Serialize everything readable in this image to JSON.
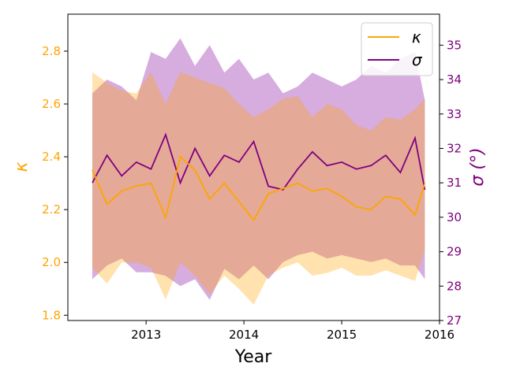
{
  "chart_data": {
    "type": "line",
    "title": "",
    "xlabel": "Year",
    "xlim": [
      2012.2,
      2016.0
    ],
    "xticks": [
      2013,
      2014,
      2015,
      2016
    ],
    "xtick_labels": [
      "2013",
      "2014",
      "2015",
      "2016"
    ],
    "grid": false,
    "legend": {
      "position": "top-right",
      "entries": [
        "κ",
        "σ"
      ]
    },
    "y_left": {
      "label": "κ",
      "color": "#FFA500",
      "ylim": [
        1.78,
        2.94
      ],
      "ticks": [
        1.8,
        2.0,
        2.2,
        2.4,
        2.6,
        2.8
      ],
      "tick_labels": [
        "1.8",
        "2.0",
        "2.2",
        "2.4",
        "2.6",
        "2.8"
      ]
    },
    "y_right": {
      "label": "σ (°)",
      "color": "#800080",
      "ylim": [
        27.0,
        35.9
      ],
      "ticks": [
        27,
        28,
        29,
        30,
        31,
        32,
        33,
        34,
        35
      ],
      "tick_labels": [
        "27",
        "28",
        "29",
        "30",
        "31",
        "32",
        "33",
        "34",
        "35"
      ]
    },
    "series": [
      {
        "name": "κ",
        "axis": "left",
        "color": "#FFA500",
        "band_color": "#FFA500",
        "x": [
          2012.45,
          2012.6,
          2012.75,
          2012.9,
          2013.05,
          2013.2,
          2013.35,
          2013.5,
          2013.65,
          2013.8,
          2013.95,
          2014.1,
          2014.25,
          2014.4,
          2014.55,
          2014.7,
          2014.85,
          2015.0,
          2015.15,
          2015.3,
          2015.45,
          2015.6,
          2015.75,
          2015.85
        ],
        "y": [
          2.35,
          2.22,
          2.27,
          2.29,
          2.3,
          2.17,
          2.4,
          2.35,
          2.24,
          2.3,
          2.23,
          2.16,
          2.26,
          2.28,
          2.3,
          2.27,
          2.28,
          2.25,
          2.21,
          2.2,
          2.25,
          2.24,
          2.18,
          2.3
        ],
        "lower": [
          1.98,
          1.92,
          2.0,
          2.0,
          1.98,
          1.86,
          2.0,
          1.95,
          1.88,
          1.95,
          1.9,
          1.84,
          1.95,
          1.98,
          2.0,
          1.95,
          1.96,
          1.98,
          1.95,
          1.95,
          1.97,
          1.95,
          1.93,
          2.05
        ],
        "upper": [
          2.72,
          2.68,
          2.65,
          2.64,
          2.72,
          2.6,
          2.72,
          2.7,
          2.68,
          2.66,
          2.6,
          2.55,
          2.58,
          2.62,
          2.63,
          2.55,
          2.6,
          2.58,
          2.52,
          2.5,
          2.55,
          2.54,
          2.58,
          2.62
        ]
      },
      {
        "name": "σ",
        "axis": "right",
        "color": "#800080",
        "band_color": "#9B30B0",
        "x": [
          2012.45,
          2012.6,
          2012.75,
          2012.9,
          2013.05,
          2013.2,
          2013.35,
          2013.5,
          2013.65,
          2013.8,
          2013.95,
          2014.1,
          2014.25,
          2014.4,
          2014.55,
          2014.7,
          2014.85,
          2015.0,
          2015.15,
          2015.3,
          2015.45,
          2015.6,
          2015.75,
          2015.85
        ],
        "y": [
          31.0,
          31.8,
          31.2,
          31.6,
          31.4,
          32.4,
          31.0,
          32.0,
          31.2,
          31.8,
          31.6,
          32.2,
          30.9,
          30.8,
          31.4,
          31.9,
          31.5,
          31.6,
          31.4,
          31.5,
          31.8,
          31.3,
          32.3,
          30.8
        ],
        "lower": [
          28.2,
          28.6,
          28.8,
          28.4,
          28.4,
          28.3,
          28.0,
          28.2,
          27.6,
          28.5,
          28.2,
          28.6,
          28.2,
          28.7,
          28.9,
          29.0,
          28.8,
          28.9,
          28.8,
          28.7,
          28.8,
          28.6,
          28.6,
          28.2
        ],
        "upper": [
          33.6,
          34.0,
          33.8,
          33.4,
          34.8,
          34.6,
          35.2,
          34.4,
          35.0,
          34.2,
          34.6,
          34.0,
          34.2,
          33.6,
          33.8,
          34.2,
          34.0,
          33.8,
          34.0,
          34.4,
          34.2,
          34.6,
          34.8,
          33.4
        ]
      }
    ]
  }
}
